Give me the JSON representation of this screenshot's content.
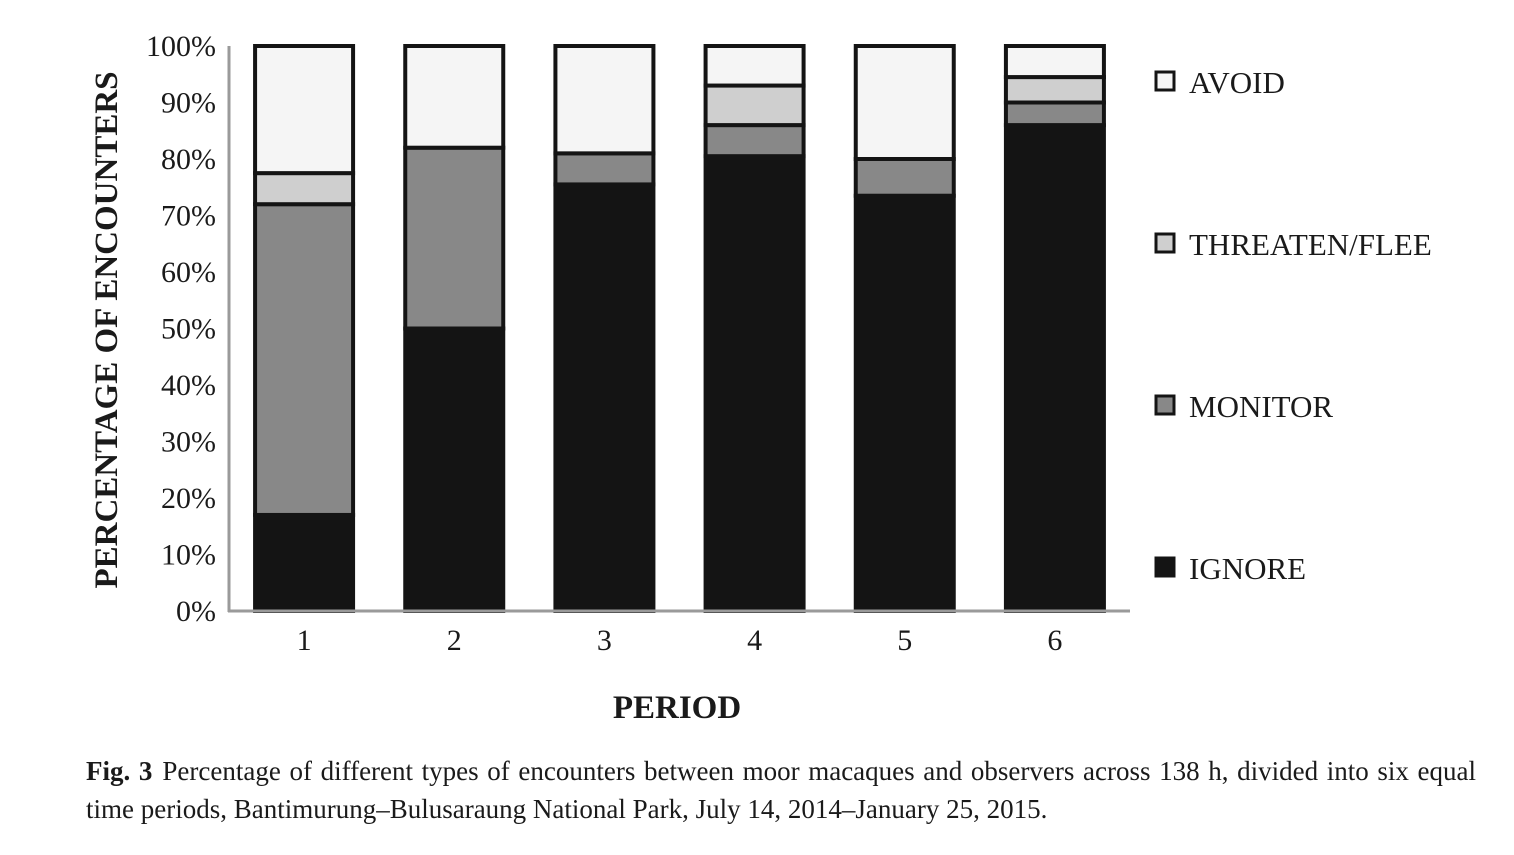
{
  "chart_data": {
    "type": "bar",
    "stacked": true,
    "title": "",
    "xlabel": "PERIOD",
    "ylabel": "PERCENTAGE OF ENCOUNTERS",
    "ylim": [
      0,
      100
    ],
    "y_ticks": [
      "0%",
      "10%",
      "20%",
      "30%",
      "40%",
      "50%",
      "60%",
      "70%",
      "80%",
      "90%",
      "100%"
    ],
    "categories": [
      "1",
      "2",
      "3",
      "4",
      "5",
      "6"
    ],
    "series": [
      {
        "name": "IGNORE",
        "color": "#141414",
        "values": [
          17,
          50,
          75.5,
          80.5,
          73.5,
          86
        ]
      },
      {
        "name": "MONITOR",
        "color": "#888888",
        "values": [
          55,
          32,
          5.5,
          5.5,
          6.5,
          4
        ]
      },
      {
        "name": "THREATEN/FLEE",
        "color": "#cfcfcf",
        "values": [
          5.5,
          0,
          0,
          7,
          0,
          4.5
        ]
      },
      {
        "name": "AVOID",
        "color": "#f5f5f5",
        "values": [
          22.5,
          18,
          19,
          7,
          20,
          5.5
        ]
      }
    ],
    "legend_order": [
      "AVOID",
      "THREATEN/FLEE",
      "MONITOR",
      "IGNORE"
    ],
    "legend_position": "right",
    "grid": false
  },
  "caption": {
    "label": "Fig. 3",
    "text": "Percentage of different types of encounters between moor macaques and observers across 138 h, divided into six equal time periods, Bantimurung–Bulusaraung National Park, July 14, 2014–January 25, 2015."
  }
}
